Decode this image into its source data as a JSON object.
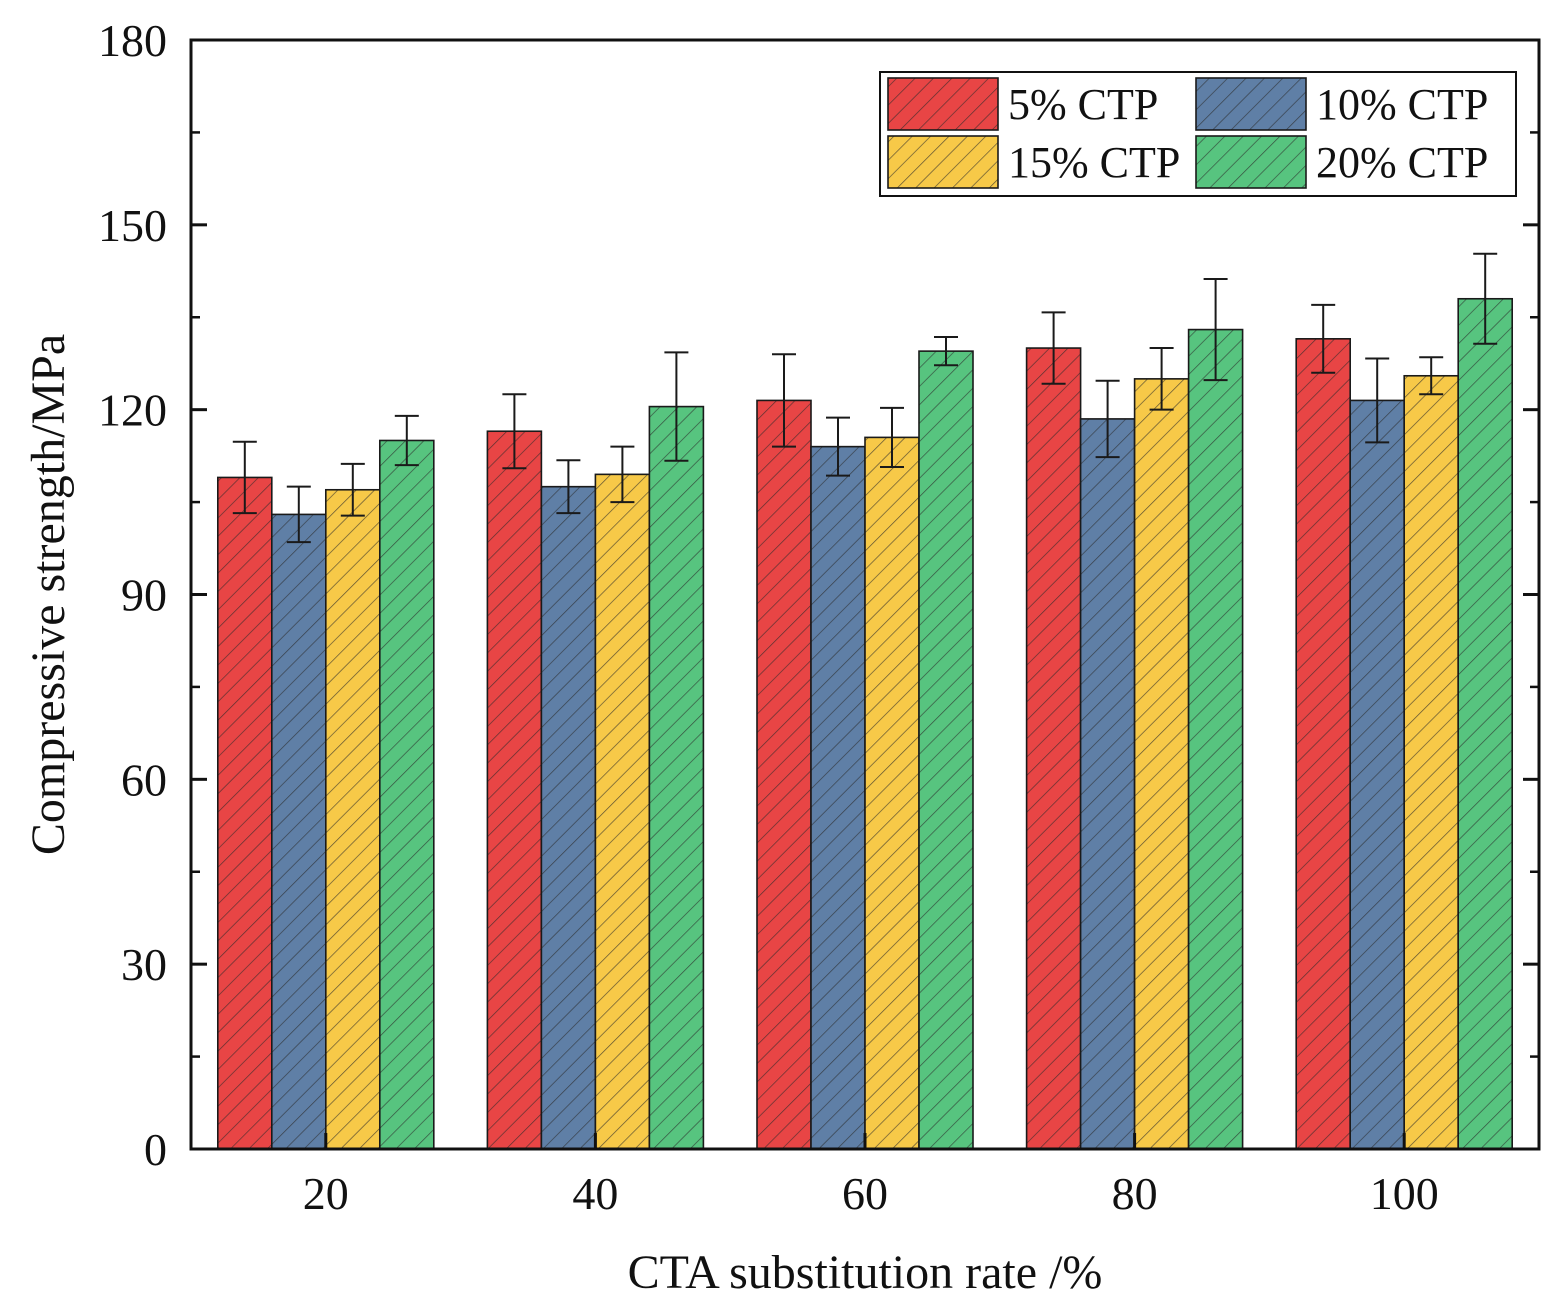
{
  "chart_data": {
    "type": "bar",
    "title": "",
    "xlabel": "CTA substitution rate /%",
    "ylabel": "Compressive strength/MPa",
    "categories": [
      "20",
      "40",
      "60",
      "80",
      "100"
    ],
    "ylim": [
      0,
      180
    ],
    "yticks": [
      "0",
      "30",
      "60",
      "90",
      "120",
      "150",
      "180"
    ],
    "grid": false,
    "legend_position": "top-right",
    "bar_pattern": "diagonal-hatch",
    "series": [
      {
        "name": "5% CTP",
        "color": "#e84545",
        "values": [
          109.0,
          116.5,
          121.5,
          130.0,
          131.5
        ],
        "errors": [
          5.8,
          6.0,
          7.5,
          5.8,
          5.5
        ]
      },
      {
        "name": "10% CTP",
        "color": "#5f7fa6",
        "values": [
          103.0,
          107.5,
          114.0,
          118.5,
          121.5
        ],
        "errors": [
          4.5,
          4.3,
          4.7,
          6.2,
          6.8
        ]
      },
      {
        "name": "15% CTP",
        "color": "#f7c948",
        "values": [
          107.0,
          109.5,
          115.5,
          125.0,
          125.5
        ],
        "errors": [
          4.2,
          4.5,
          4.8,
          5.0,
          3.0
        ]
      },
      {
        "name": "20% CTP",
        "color": "#57c47f",
        "values": [
          115.0,
          120.5,
          129.5,
          133.0,
          138.0
        ],
        "errors": [
          4.0,
          8.8,
          2.3,
          8.2,
          7.3
        ]
      }
    ]
  }
}
